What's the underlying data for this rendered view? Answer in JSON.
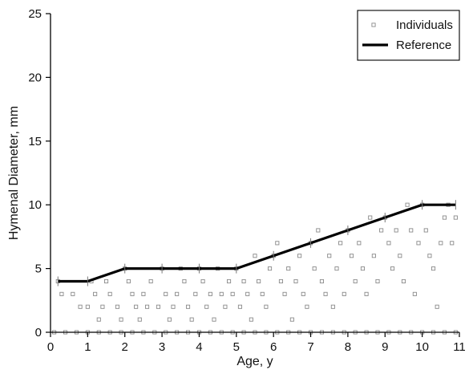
{
  "chart_data": {
    "type": "scatter",
    "xlabel": "Age, y",
    "ylabel": "Hymenal Diameter, mm",
    "xlim": [
      0,
      11
    ],
    "ylim": [
      0,
      25
    ],
    "xticks": [
      0,
      1,
      2,
      3,
      4,
      5,
      6,
      7,
      8,
      9,
      10,
      11
    ],
    "yticks": [
      0,
      5,
      10,
      15,
      20,
      25
    ],
    "grid": false,
    "legend": {
      "position": "top-right",
      "entries": [
        {
          "label": "Individuals",
          "marker": "square"
        },
        {
          "label": "Reference",
          "marker": "line"
        }
      ]
    },
    "colors": {
      "individuals": "#8a8a8a",
      "reference": "#000000"
    },
    "series": [
      {
        "name": "Individuals",
        "kind": "scatter",
        "points": [
          [
            0.2,
            4
          ],
          [
            0.3,
            3
          ],
          [
            0.6,
            3
          ],
          [
            0.8,
            2
          ],
          [
            1.0,
            2
          ],
          [
            1.1,
            4
          ],
          [
            1.2,
            3
          ],
          [
            1.3,
            1
          ],
          [
            1.4,
            2
          ],
          [
            1.5,
            4
          ],
          [
            1.6,
            3
          ],
          [
            1.8,
            2
          ],
          [
            1.9,
            1
          ],
          [
            2.0,
            5
          ],
          [
            2.1,
            4
          ],
          [
            2.2,
            3
          ],
          [
            2.3,
            2
          ],
          [
            2.4,
            1
          ],
          [
            2.5,
            3
          ],
          [
            2.6,
            2
          ],
          [
            2.7,
            4
          ],
          [
            2.9,
            2
          ],
          [
            3.0,
            5
          ],
          [
            3.1,
            3
          ],
          [
            3.2,
            1
          ],
          [
            3.3,
            2
          ],
          [
            3.4,
            3
          ],
          [
            3.5,
            5
          ],
          [
            3.6,
            4
          ],
          [
            3.7,
            2
          ],
          [
            3.8,
            1
          ],
          [
            3.9,
            3
          ],
          [
            4.0,
            5
          ],
          [
            4.1,
            4
          ],
          [
            4.2,
            2
          ],
          [
            4.3,
            3
          ],
          [
            4.4,
            1
          ],
          [
            4.5,
            5
          ],
          [
            4.6,
            3
          ],
          [
            4.7,
            2
          ],
          [
            4.8,
            4
          ],
          [
            4.9,
            3
          ],
          [
            5.0,
            5
          ],
          [
            5.1,
            2
          ],
          [
            5.2,
            4
          ],
          [
            5.3,
            3
          ],
          [
            5.4,
            1
          ],
          [
            5.5,
            6
          ],
          [
            5.6,
            4
          ],
          [
            5.7,
            3
          ],
          [
            5.8,
            2
          ],
          [
            5.9,
            5
          ],
          [
            6.0,
            6
          ],
          [
            6.1,
            7
          ],
          [
            6.2,
            4
          ],
          [
            6.3,
            3
          ],
          [
            6.4,
            5
          ],
          [
            6.5,
            1
          ],
          [
            6.6,
            4
          ],
          [
            6.7,
            6
          ],
          [
            6.8,
            3
          ],
          [
            6.9,
            2
          ],
          [
            7.0,
            7
          ],
          [
            7.1,
            5
          ],
          [
            7.2,
            8
          ],
          [
            7.3,
            4
          ],
          [
            7.4,
            3
          ],
          [
            7.5,
            6
          ],
          [
            7.6,
            2
          ],
          [
            7.7,
            5
          ],
          [
            7.8,
            7
          ],
          [
            7.9,
            3
          ],
          [
            8.0,
            8
          ],
          [
            8.1,
            6
          ],
          [
            8.2,
            4
          ],
          [
            8.3,
            7
          ],
          [
            8.4,
            5
          ],
          [
            8.5,
            3
          ],
          [
            8.6,
            9
          ],
          [
            8.7,
            6
          ],
          [
            8.8,
            4
          ],
          [
            8.9,
            8
          ],
          [
            9.0,
            9
          ],
          [
            9.1,
            7
          ],
          [
            9.2,
            5
          ],
          [
            9.3,
            8
          ],
          [
            9.4,
            6
          ],
          [
            9.5,
            4
          ],
          [
            9.6,
            10
          ],
          [
            9.7,
            8
          ],
          [
            9.8,
            3
          ],
          [
            9.9,
            7
          ],
          [
            10.0,
            10
          ],
          [
            10.1,
            8
          ],
          [
            10.2,
            6
          ],
          [
            10.3,
            5
          ],
          [
            10.4,
            2
          ],
          [
            10.5,
            7
          ],
          [
            10.6,
            9
          ],
          [
            10.7,
            10
          ],
          [
            10.8,
            7
          ],
          [
            10.9,
            9
          ]
        ],
        "zero_points": [
          0.1,
          0.4,
          0.7,
          1.0,
          1.3,
          1.6,
          1.9,
          2.2,
          2.5,
          2.8,
          3.1,
          3.4,
          3.7,
          4.0,
          4.3,
          4.6,
          4.9,
          5.2,
          5.5,
          5.8,
          6.1,
          6.4,
          6.7,
          7.0,
          7.3,
          7.6,
          7.9,
          8.2,
          8.5,
          8.8,
          9.1,
          9.4,
          9.7,
          10.0,
          10.3,
          10.6,
          10.9
        ]
      },
      {
        "name": "Reference",
        "kind": "line",
        "points": [
          [
            0.2,
            4
          ],
          [
            1,
            4
          ],
          [
            2,
            5
          ],
          [
            5,
            5
          ],
          [
            10,
            10
          ],
          [
            10.9,
            10
          ]
        ]
      }
    ]
  }
}
